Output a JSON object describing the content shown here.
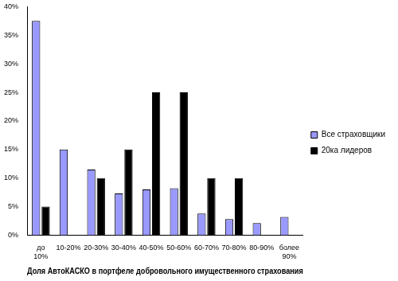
{
  "chart_data": {
    "type": "bar",
    "x_label": "Доля АвтоКАСКО в портфеле добровольного имущественного страхования",
    "categories": [
      "до 10%",
      "10-20%",
      "20-30%",
      "30-40%",
      "40-50%",
      "50-60%",
      "60-70%",
      "70-80%",
      "80-90%",
      "более 90%"
    ],
    "series": [
      {
        "name": "Все страховщики",
        "color": "#9999ff",
        "values": [
          37.5,
          15,
          11.5,
          7.3,
          8,
          8.2,
          3.8,
          2.8,
          2.1,
          3.2
        ]
      },
      {
        "name": "20ка лидеров",
        "color": "#000000",
        "values": [
          5,
          0,
          10,
          15,
          25,
          25,
          10,
          10,
          0,
          0
        ]
      }
    ],
    "ylim": [
      0,
      40
    ],
    "yticks": [
      {
        "value": 0,
        "label": "0%"
      },
      {
        "value": 5,
        "label": "5%"
      },
      {
        "value": 10,
        "label": "10%"
      },
      {
        "value": 15,
        "label": "15%"
      },
      {
        "value": 20,
        "label": "20%"
      },
      {
        "value": 25,
        "label": "25%"
      },
      {
        "value": 30,
        "label": "30%"
      },
      {
        "value": 35,
        "label": "35%"
      },
      {
        "value": 40,
        "label": "40%"
      }
    ],
    "grid": false,
    "legend": "right"
  }
}
